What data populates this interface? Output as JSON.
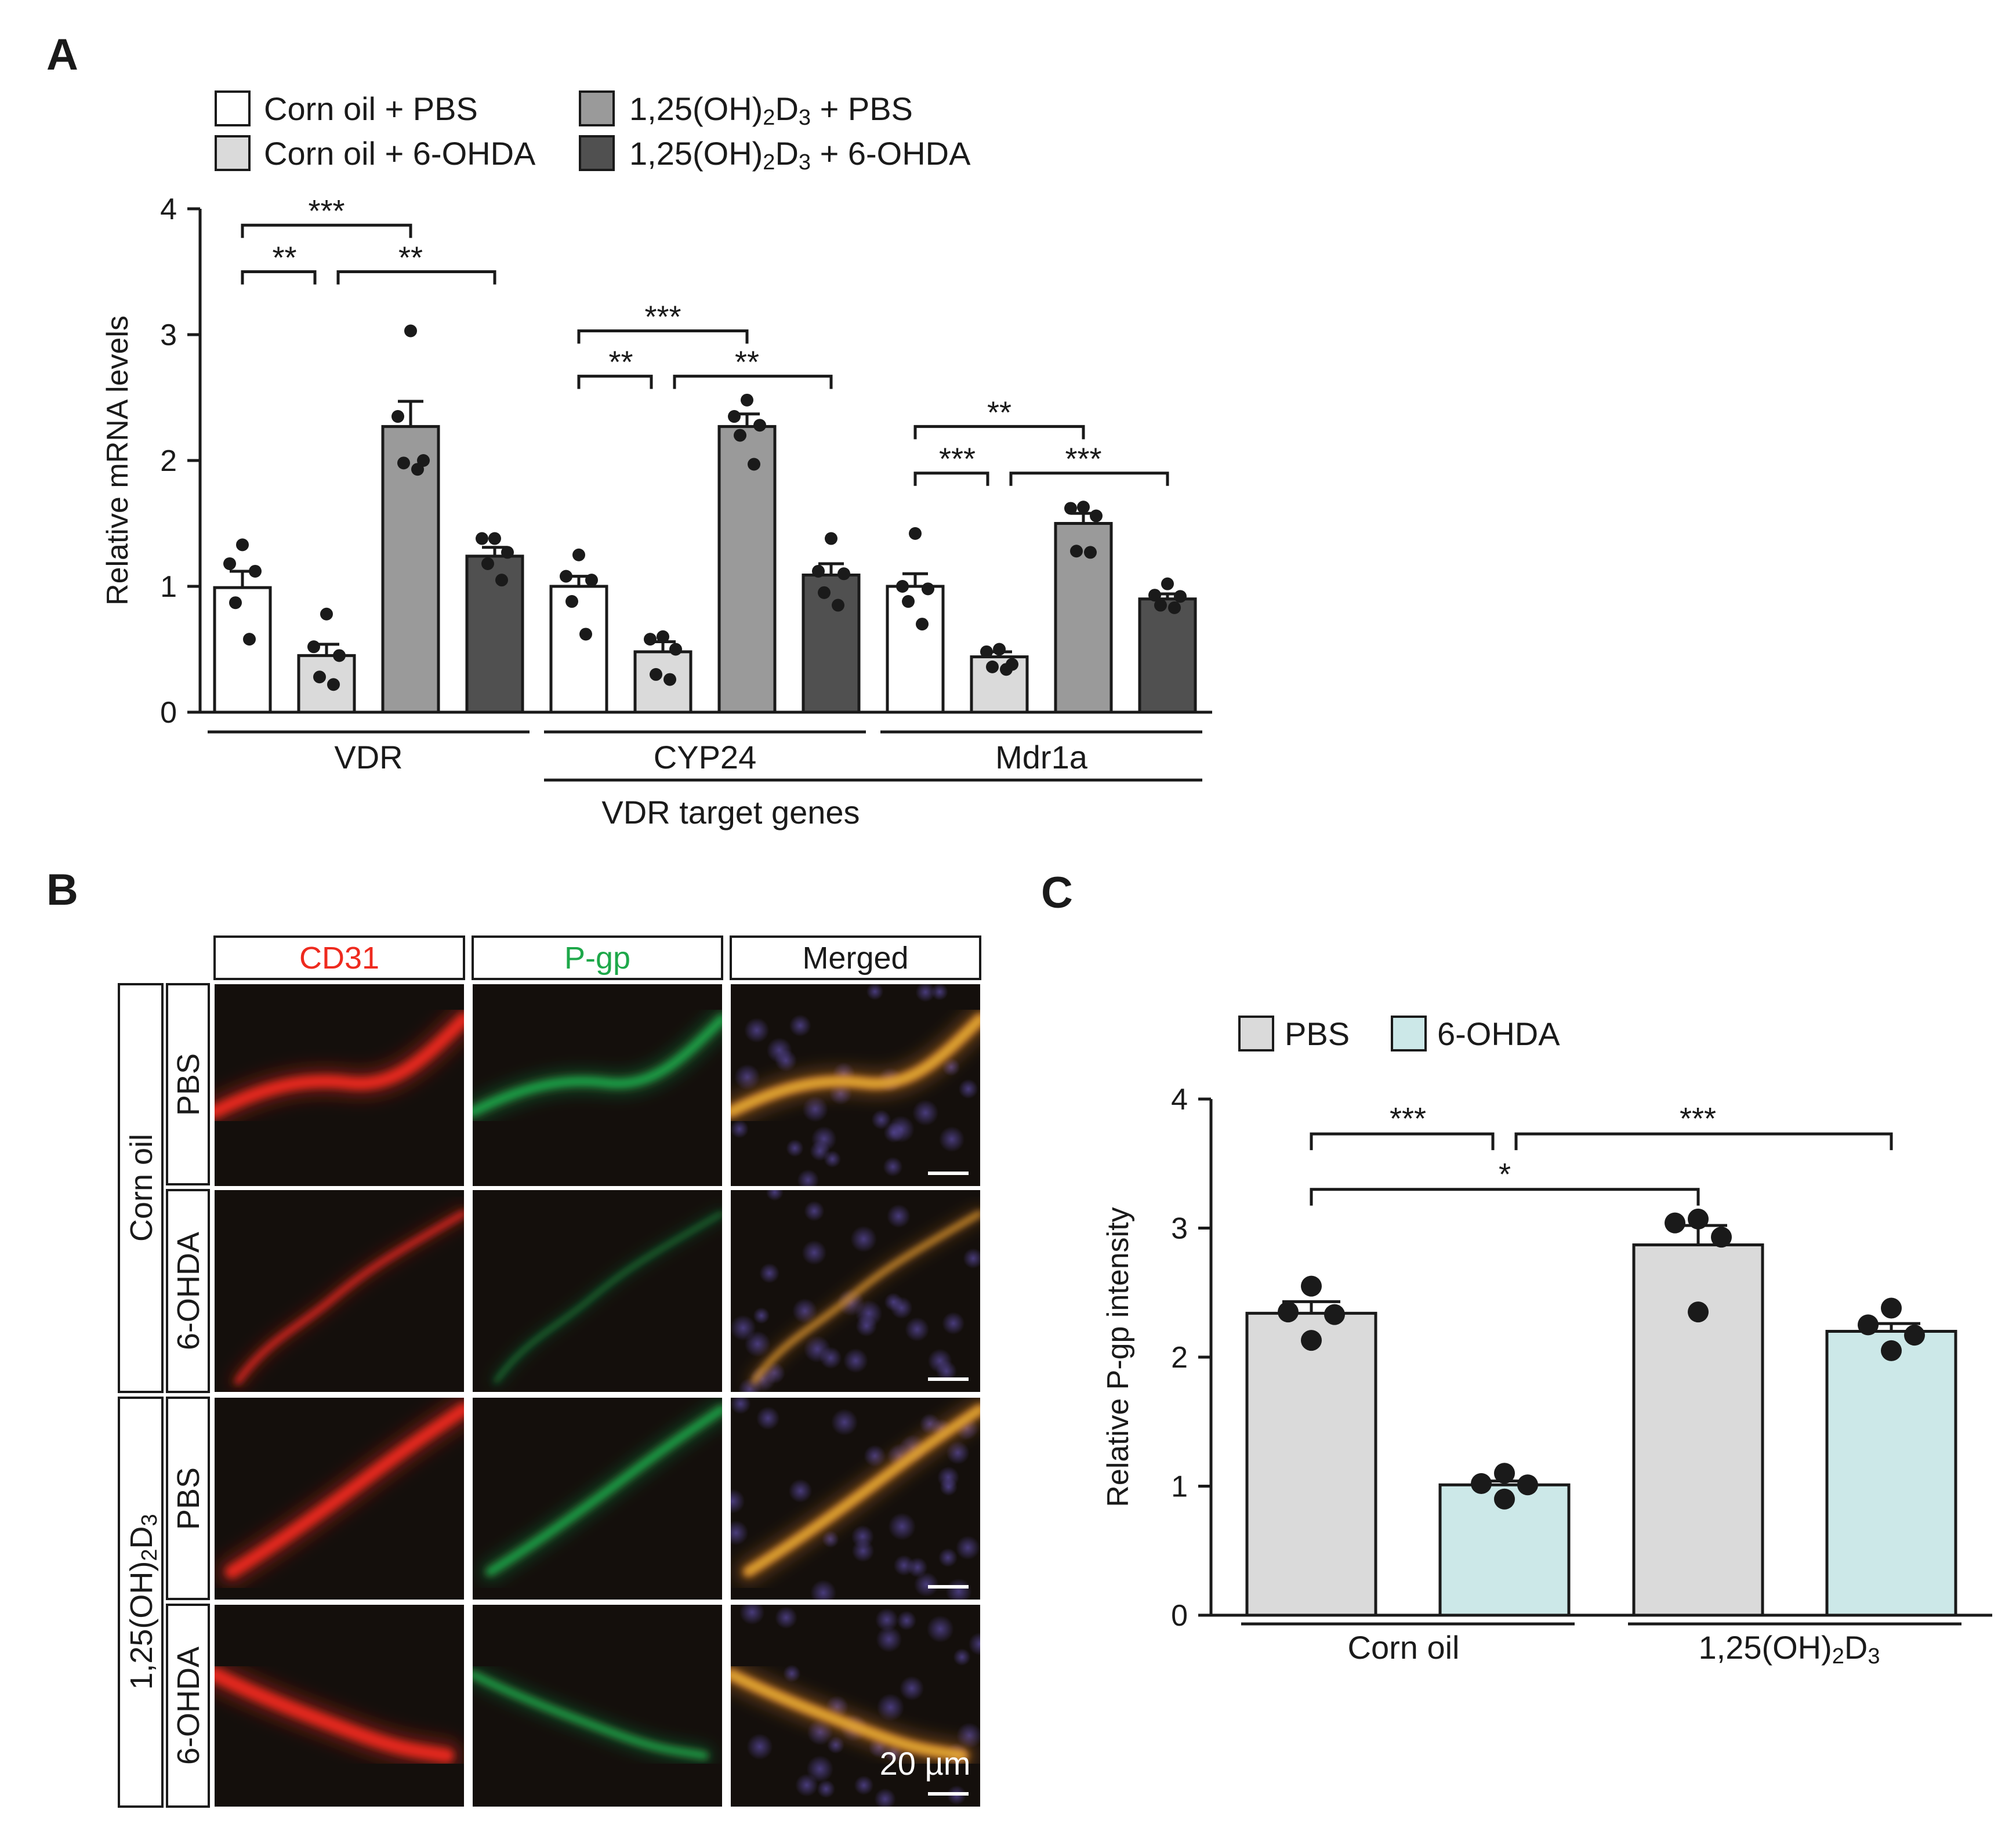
{
  "colors": {
    "panelA": [
      "#ffffff",
      "#dadada",
      "#9a9a9a",
      "#505050"
    ],
    "panelC": [
      "#dadada",
      "#cce8e8"
    ],
    "cd31": "#ee2a1e",
    "pgp": "#1ea84a",
    "ink": "#1a1a1a"
  },
  "panel_labels": {
    "A": "A",
    "B": "B",
    "C": "C"
  },
  "panelA": {
    "legend": [
      {
        "label": "Corn oil + PBS"
      },
      {
        "label": "Corn oil + 6-OHDA"
      },
      {
        "label_prefix": "1,25(OH)",
        "sub1": "2",
        "mid": "D",
        "sub2": "3",
        "label_suffix": " + PBS"
      },
      {
        "label_prefix": "1,25(OH)",
        "sub1": "2",
        "mid": "D",
        "sub2": "3",
        "label_suffix": " + 6-OHDA"
      }
    ],
    "group_caption": "VDR target genes"
  },
  "panelB": {
    "columns": [
      "CD31",
      "P-gp",
      "Merged"
    ],
    "outer_rows": [
      {
        "label": "Corn oil"
      },
      {
        "label_prefix": "1,25(OH)",
        "sub1": "2",
        "mid": "D",
        "sub2": "3"
      }
    ],
    "inner_rows": [
      "PBS",
      "6-OHDA",
      "PBS",
      "6-OHDA"
    ],
    "scale_bar": "20 µm"
  },
  "panelC": {
    "legend": [
      "PBS",
      "6-OHDA"
    ],
    "groups": [
      {
        "label": "Corn oil"
      },
      {
        "label_prefix": "1,25(OH)",
        "sub1": "2",
        "mid": "D",
        "sub2": "3"
      }
    ]
  },
  "chart_data": [
    {
      "type": "bar",
      "title": "",
      "ylabel": "Relative mRNA levels",
      "xlabel": "",
      "ylim": [
        0,
        4
      ],
      "yticks": [
        0,
        1,
        2,
        3,
        4
      ],
      "categories": [
        "VDR",
        "CYP24",
        "Mdr1a"
      ],
      "series": [
        {
          "name": "Corn oil + PBS",
          "values": [
            0.99,
            1.0,
            1.0
          ],
          "sem": [
            0.13,
            0.08,
            0.1
          ],
          "points": [
            [
              1.33,
              1.18,
              1.12,
              0.87,
              0.58
            ],
            [
              1.25,
              1.08,
              1.05,
              0.88,
              0.62
            ],
            [
              1.42,
              1.0,
              0.98,
              0.88,
              0.7
            ]
          ]
        },
        {
          "name": "Corn oil + 6-OHDA",
          "values": [
            0.45,
            0.48,
            0.44
          ],
          "sem": [
            0.09,
            0.08,
            0.04
          ],
          "points": [
            [
              0.78,
              0.52,
              0.45,
              0.28,
              0.22
            ],
            [
              0.6,
              0.58,
              0.5,
              0.3,
              0.26
            ],
            [
              0.5,
              0.48,
              0.38,
              0.36,
              0.34
            ]
          ]
        },
        {
          "name": "1,25(OH)2D3 + PBS",
          "values": [
            2.27,
            2.27,
            1.5
          ],
          "sem": [
            0.2,
            0.1,
            0.08
          ],
          "points": [
            [
              3.03,
              2.35,
              2.0,
              1.98,
              1.93
            ],
            [
              2.48,
              2.35,
              2.28,
              2.2,
              1.97
            ],
            [
              1.63,
              1.62,
              1.56,
              1.28,
              1.27
            ]
          ]
        },
        {
          "name": "1,25(OH)2D3 + 6-OHDA",
          "values": [
            1.24,
            1.09,
            0.9
          ],
          "sem": [
            0.07,
            0.09,
            0.04
          ],
          "points": [
            [
              1.38,
              1.38,
              1.27,
              1.18,
              1.05
            ],
            [
              1.38,
              1.12,
              1.1,
              0.95,
              0.85
            ],
            [
              1.02,
              0.93,
              0.92,
              0.85,
              0.83
            ]
          ]
        }
      ],
      "significance": [
        {
          "category": "VDR",
          "from": 0,
          "to": 1,
          "label": "**",
          "y": 3.5
        },
        {
          "category": "VDR",
          "from": 0,
          "to": 2,
          "label": "***",
          "y": 3.87
        },
        {
          "category": "VDR",
          "from": 1,
          "to": 3,
          "label": "**",
          "y": 3.5
        },
        {
          "category": "CYP24",
          "from": 0,
          "to": 1,
          "label": "**",
          "y": 2.67
        },
        {
          "category": "CYP24",
          "from": 0,
          "to": 2,
          "label": "***",
          "y": 3.03
        },
        {
          "category": "CYP24",
          "from": 1,
          "to": 3,
          "label": "**",
          "y": 2.67
        },
        {
          "category": "Mdr1a",
          "from": 0,
          "to": 1,
          "label": "***",
          "y": 1.9
        },
        {
          "category": "Mdr1a",
          "from": 0,
          "to": 2,
          "label": "**",
          "y": 2.27
        },
        {
          "category": "Mdr1a",
          "from": 1,
          "to": 3,
          "label": "***",
          "y": 1.9
        }
      ]
    },
    {
      "type": "bar",
      "title": "",
      "ylabel": "Relative P-gp intensity",
      "xlabel": "",
      "ylim": [
        0,
        4
      ],
      "yticks": [
        0,
        1,
        2,
        3,
        4
      ],
      "categories": [
        "Corn oil",
        "1,25(OH)2D3"
      ],
      "series": [
        {
          "name": "PBS",
          "values": [
            2.34,
            2.87
          ],
          "sem": [
            0.09,
            0.15
          ],
          "points": [
            [
              2.55,
              2.35,
              2.33,
              2.13
            ],
            [
              3.07,
              3.04,
              2.93,
              2.35
            ]
          ]
        },
        {
          "name": "6-OHDA",
          "values": [
            1.01,
            2.2
          ],
          "sem": [
            0.03,
            0.06
          ],
          "points": [
            [
              1.1,
              1.02,
              1.01,
              0.9
            ],
            [
              2.38,
              2.25,
              2.17,
              2.05
            ]
          ]
        }
      ],
      "significance": [
        {
          "from_bar": 0,
          "to_bar": 1,
          "label": "***",
          "y": 3.73
        },
        {
          "from_bar": 1,
          "to_bar": 3,
          "label": "***",
          "y": 3.73
        },
        {
          "from_bar": 0,
          "to_bar": 2,
          "label": "*",
          "y": 3.3
        }
      ]
    }
  ]
}
